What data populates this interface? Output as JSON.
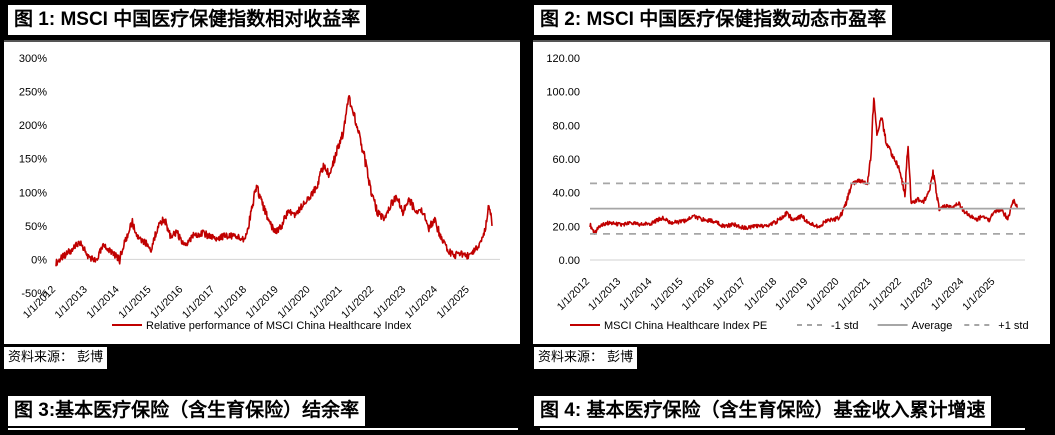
{
  "figures": [
    {
      "title": "图 1: MSCI 中国医疗保健指数相对收益率"
    },
    {
      "title": "图 2: MSCI 中国医疗保健指数动态市盈率"
    },
    {
      "title": "图 3:基本医疗保险（含生育保险）结余率"
    },
    {
      "title": "图 4: 基本医疗保险（含生育保险）基金收入累计增速"
    }
  ],
  "sources": [
    {
      "text": "资料来源： 彭博"
    },
    {
      "text": "资料来源： 彭博"
    }
  ],
  "colors": {
    "series": "#C00000",
    "std_lines": "#A6A6A6",
    "average": "#A6A6A6",
    "axis": "#D9D9D9"
  },
  "chart_data": [
    {
      "type": "line",
      "title": "图 1: MSCI 中国医疗保健指数相对收益率",
      "xlabel": "",
      "ylabel": "",
      "ylim": [
        -50,
        300
      ],
      "y_ticks": [
        "-50%",
        "0%",
        "50%",
        "100%",
        "150%",
        "200%",
        "250%",
        "300%"
      ],
      "x_ticks": [
        "1/1/2012",
        "1/1/2013",
        "1/1/2014",
        "1/1/2015",
        "1/1/2016",
        "1/1/2017",
        "1/1/2018",
        "1/1/2019",
        "1/1/2020",
        "1/1/2021",
        "1/1/2022",
        "1/1/2023",
        "1/1/2024",
        "1/1/2025"
      ],
      "grid": false,
      "legend_position": "bottom",
      "series": [
        {
          "name": "Relative performance of MSCI China Healthcare Index",
          "x": [
            2012.0,
            2012.25,
            2012.5,
            2012.75,
            2013.0,
            2013.25,
            2013.5,
            2013.75,
            2014.0,
            2014.2,
            2014.4,
            2014.6,
            2014.8,
            2015.0,
            2015.2,
            2015.4,
            2015.6,
            2015.8,
            2016.0,
            2016.3,
            2016.6,
            2017.0,
            2017.3,
            2017.6,
            2017.9,
            2018.1,
            2018.3,
            2018.5,
            2018.7,
            2018.9,
            2019.1,
            2019.3,
            2019.5,
            2019.8,
            2020.0,
            2020.2,
            2020.4,
            2020.6,
            2020.8,
            2021.0,
            2021.1,
            2021.2,
            2021.35,
            2021.5,
            2021.7,
            2021.9,
            2022.1,
            2022.3,
            2022.5,
            2022.7,
            2022.9,
            2023.1,
            2023.3,
            2023.5,
            2023.7,
            2023.9,
            2024.1,
            2024.3,
            2024.5,
            2024.7,
            2024.9,
            2025.1,
            2025.3,
            2025.5,
            2025.6,
            2025.7
          ],
          "values": [
            -5,
            5,
            15,
            25,
            5,
            -2,
            20,
            10,
            0,
            30,
            55,
            30,
            25,
            15,
            50,
            60,
            35,
            40,
            20,
            35,
            40,
            30,
            35,
            35,
            30,
            60,
            110,
            80,
            55,
            40,
            50,
            75,
            65,
            85,
            95,
            110,
            140,
            125,
            160,
            185,
            210,
            240,
            220,
            190,
            150,
            100,
            70,
            60,
            80,
            95,
            70,
            90,
            70,
            75,
            45,
            60,
            30,
            15,
            5,
            10,
            5,
            10,
            20,
            45,
            85,
            50
          ]
        }
      ]
    },
    {
      "type": "line",
      "title": "图 2: MSCI 中国医疗保健指数动态市盈率",
      "xlabel": "",
      "ylabel": "",
      "ylim": [
        0,
        120
      ],
      "y_ticks": [
        "0.00",
        "20.00",
        "40.00",
        "60.00",
        "80.00",
        "100.00",
        "120.00"
      ],
      "x_ticks": [
        "1/1/2012",
        "1/1/2013",
        "1/1/2014",
        "1/1/2015",
        "1/1/2016",
        "1/1/2017",
        "1/1/2018",
        "1/1/2019",
        "1/1/2020",
        "1/1/2021",
        "1/1/2022",
        "1/1/2023",
        "1/1/2024",
        "1/1/2025"
      ],
      "grid": false,
      "legend_position": "bottom",
      "series": [
        {
          "name": "MSCI China Healthcare Index PE",
          "x": [
            2012.0,
            2012.15,
            2012.3,
            2012.6,
            2013.0,
            2013.3,
            2013.6,
            2014.0,
            2014.3,
            2014.6,
            2015.0,
            2015.3,
            2015.6,
            2016.0,
            2016.3,
            2016.6,
            2017.0,
            2017.3,
            2017.6,
            2018.0,
            2018.3,
            2018.5,
            2018.8,
            2019.0,
            2019.3,
            2019.6,
            2020.0,
            2020.2,
            2020.4,
            2020.6,
            2020.9,
            2021.0,
            2021.1,
            2021.2,
            2021.35,
            2021.5,
            2021.7,
            2021.9,
            2022.1,
            2022.2,
            2022.3,
            2022.5,
            2022.7,
            2022.9,
            2023.0,
            2023.2,
            2023.4,
            2023.6,
            2023.8,
            2024.0,
            2024.2,
            2024.4,
            2024.6,
            2024.8,
            2025.0,
            2025.2,
            2025.4,
            2025.6,
            2025.7
          ],
          "values": [
            21,
            16,
            20,
            22,
            21,
            22,
            21,
            22,
            25,
            22,
            23,
            26,
            24,
            23,
            20,
            21,
            19,
            20,
            20,
            23,
            28,
            24,
            26,
            22,
            20,
            23,
            25,
            33,
            45,
            47,
            46,
            60,
            97,
            75,
            85,
            70,
            62,
            55,
            40,
            70,
            33,
            36,
            35,
            42,
            52,
            30,
            32,
            31,
            34,
            29,
            26,
            24,
            26,
            24,
            29,
            30,
            24,
            36,
            31
          ]
        },
        {
          "name": "-1 std",
          "constant": 15.5,
          "style": "dashed"
        },
        {
          "name": "Average",
          "constant": 30.5,
          "style": "solid"
        },
        {
          "name": "+1 std",
          "constant": 45.5,
          "style": "dashed"
        }
      ]
    }
  ]
}
